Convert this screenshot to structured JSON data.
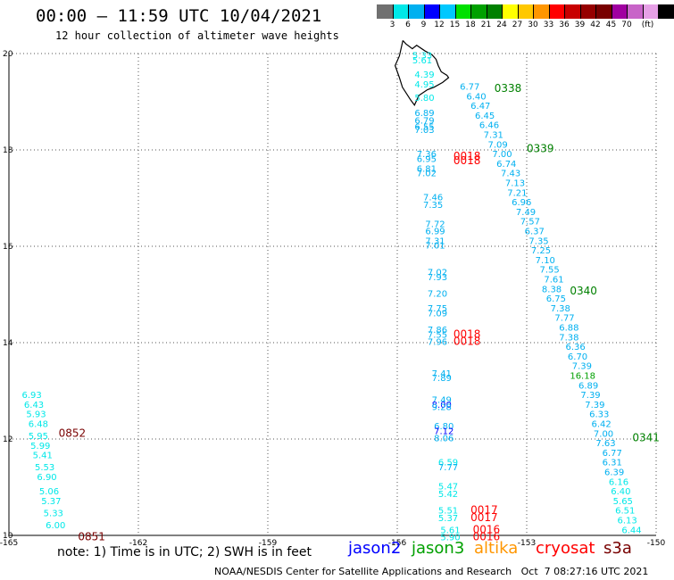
{
  "header": {
    "title": "00:00 – 11:59 UTC 10/04/2021",
    "subtitle": "12 hour collection of altimeter wave heights"
  },
  "legend": {
    "unit": "(ft)",
    "colors": [
      "#707070",
      "#00e8e8",
      "#00b0f0",
      "#0000ff",
      "#00c8ff",
      "#00e000",
      "#00a000",
      "#008000",
      "#ffff00",
      "#ffc800",
      "#ff9600",
      "#ff0000",
      "#c80000",
      "#960000",
      "#780000",
      "#a000a0",
      "#c864c8",
      "#e6a0e6",
      "#000000"
    ],
    "labels": [
      "3",
      "6",
      "9",
      "12",
      "15",
      "18",
      "21",
      "24",
      "27",
      "30",
      "33",
      "36",
      "39",
      "42",
      "45",
      "70"
    ]
  },
  "axes": {
    "x_ticks": [
      "-165",
      "-162",
      "-159",
      "-156",
      "-153",
      "-150"
    ],
    "y_ticks": [
      "20",
      "18",
      "16",
      "14",
      "12",
      "10"
    ]
  },
  "chart_data": {
    "type": "scatter",
    "xlim": [
      -165,
      -150
    ],
    "ylim": [
      10,
      20
    ],
    "grid": true,
    "wave_heights": [
      {
        "lon": -155.65,
        "lat": 19.9,
        "text": "5.33",
        "color": "#00e8e8"
      },
      {
        "lon": -155.65,
        "lat": 19.8,
        "text": "5.61",
        "color": "#00e8e8"
      },
      {
        "lon": -155.6,
        "lat": 19.5,
        "text": "4.39",
        "color": "#00e8e8"
      },
      {
        "lon": -155.6,
        "lat": 19.3,
        "text": "4.95",
        "color": "#00e8e8"
      },
      {
        "lon": -155.6,
        "lat": 19.02,
        "text": "5.80",
        "color": "#00e8e8"
      },
      {
        "lon": -155.6,
        "lat": 18.7,
        "text": "6.89",
        "color": "#00b0f0"
      },
      {
        "lon": -155.6,
        "lat": 18.55,
        "text": "6.79",
        "color": "#00b0f0"
      },
      {
        "lon": -155.6,
        "lat": 18.42,
        "text": "6.55",
        "color": "#00b0f0"
      },
      {
        "lon": -155.6,
        "lat": 18.35,
        "text": "7.03",
        "color": "#00b0f0"
      },
      {
        "lon": -154.55,
        "lat": 19.25,
        "text": "6.77",
        "color": "#00b0f0"
      },
      {
        "lon": -154.4,
        "lat": 19.05,
        "text": "6.40",
        "color": "#00b0f0"
      },
      {
        "lon": -154.3,
        "lat": 18.85,
        "text": "6.47",
        "color": "#00b0f0"
      },
      {
        "lon": -154.2,
        "lat": 18.65,
        "text": "6.45",
        "color": "#00b0f0"
      },
      {
        "lon": -154.1,
        "lat": 18.45,
        "text": "6.46",
        "color": "#00b0f0"
      },
      {
        "lon": -154.0,
        "lat": 18.25,
        "text": "7.31",
        "color": "#00b0f0"
      },
      {
        "lon": -153.9,
        "lat": 18.05,
        "text": "7.09",
        "color": "#00b0f0"
      },
      {
        "lon": -153.8,
        "lat": 17.85,
        "text": "7.00",
        "color": "#00b0f0"
      },
      {
        "lon": -153.7,
        "lat": 17.65,
        "text": "6.74",
        "color": "#00b0f0"
      },
      {
        "lon": -153.6,
        "lat": 17.45,
        "text": "7.43",
        "color": "#00b0f0"
      },
      {
        "lon": -153.5,
        "lat": 17.25,
        "text": "7.13",
        "color": "#00b0f0"
      },
      {
        "lon": -153.45,
        "lat": 17.05,
        "text": "7.21",
        "color": "#00b0f0"
      },
      {
        "lon": -153.35,
        "lat": 16.85,
        "text": "6.96",
        "color": "#00b0f0"
      },
      {
        "lon": -153.25,
        "lat": 16.65,
        "text": "7.49",
        "color": "#00b0f0"
      },
      {
        "lon": -153.15,
        "lat": 16.45,
        "text": "7.57",
        "color": "#00b0f0"
      },
      {
        "lon": -153.05,
        "lat": 16.25,
        "text": "6.37",
        "color": "#00b0f0"
      },
      {
        "lon": -152.95,
        "lat": 16.05,
        "text": "7.35",
        "color": "#00b0f0"
      },
      {
        "lon": -152.9,
        "lat": 15.85,
        "text": "7.25",
        "color": "#00b0f0"
      },
      {
        "lon": -152.8,
        "lat": 15.65,
        "text": "7.10",
        "color": "#00b0f0"
      },
      {
        "lon": -152.7,
        "lat": 15.45,
        "text": "7.55",
        "color": "#00b0f0"
      },
      {
        "lon": -152.6,
        "lat": 15.25,
        "text": "7.61",
        "color": "#00b0f0"
      },
      {
        "lon": -152.65,
        "lat": 15.05,
        "text": "8.38",
        "color": "#00b0f0"
      },
      {
        "lon": -152.55,
        "lat": 14.85,
        "text": "6.75",
        "color": "#00b0f0"
      },
      {
        "lon": -152.45,
        "lat": 14.65,
        "text": "7.38",
        "color": "#00b0f0"
      },
      {
        "lon": -152.35,
        "lat": 14.45,
        "text": "7.77",
        "color": "#00b0f0"
      },
      {
        "lon": -152.25,
        "lat": 14.25,
        "text": "6.88",
        "color": "#00b0f0"
      },
      {
        "lon": -152.25,
        "lat": 14.05,
        "text": "7.38",
        "color": "#00b0f0"
      },
      {
        "lon": -152.1,
        "lat": 13.85,
        "text": "6.36",
        "color": "#00b0f0"
      },
      {
        "lon": -152.05,
        "lat": 13.65,
        "text": "6.70",
        "color": "#00b0f0"
      },
      {
        "lon": -151.95,
        "lat": 13.45,
        "text": "7.39",
        "color": "#00b0f0"
      },
      {
        "lon": -152.0,
        "lat": 13.25,
        "text": "16.18",
        "color": "#00a000"
      },
      {
        "lon": -151.8,
        "lat": 13.05,
        "text": "6.89",
        "color": "#00b0f0"
      },
      {
        "lon": -151.75,
        "lat": 12.85,
        "text": "7.39",
        "color": "#00b0f0"
      },
      {
        "lon": -151.65,
        "lat": 12.65,
        "text": "7.39",
        "color": "#00b0f0"
      },
      {
        "lon": -151.55,
        "lat": 12.45,
        "text": "6.33",
        "color": "#00b0f0"
      },
      {
        "lon": -151.5,
        "lat": 12.25,
        "text": "6.42",
        "color": "#00b0f0"
      },
      {
        "lon": -151.45,
        "lat": 12.05,
        "text": "7.00",
        "color": "#00b0f0"
      },
      {
        "lon": -151.4,
        "lat": 11.85,
        "text": "7.63",
        "color": "#00b0f0"
      },
      {
        "lon": -151.25,
        "lat": 11.65,
        "text": "6.77",
        "color": "#00b0f0"
      },
      {
        "lon": -151.25,
        "lat": 11.45,
        "text": "6.31",
        "color": "#00b0f0"
      },
      {
        "lon": -151.2,
        "lat": 11.25,
        "text": "6.39",
        "color": "#00b0f0"
      },
      {
        "lon": -151.1,
        "lat": 11.05,
        "text": "6.16",
        "color": "#00e8e8"
      },
      {
        "lon": -151.05,
        "lat": 10.85,
        "text": "6.40",
        "color": "#00e8e8"
      },
      {
        "lon": -151.0,
        "lat": 10.65,
        "text": "5.65",
        "color": "#00e8e8"
      },
      {
        "lon": -150.95,
        "lat": 10.45,
        "text": "6.51",
        "color": "#00e8e8"
      },
      {
        "lon": -150.9,
        "lat": 10.25,
        "text": "6.13",
        "color": "#00e8e8"
      },
      {
        "lon": -150.8,
        "lat": 10.05,
        "text": "6.44",
        "color": "#00e8e8"
      },
      {
        "lon": -155.55,
        "lat": 17.85,
        "text": "7.36",
        "color": "#00b0f0"
      },
      {
        "lon": -155.55,
        "lat": 17.75,
        "text": "6.95",
        "color": "#00b0f0"
      },
      {
        "lon": -155.55,
        "lat": 17.55,
        "text": "6.81",
        "color": "#00b0f0"
      },
      {
        "lon": -155.55,
        "lat": 17.45,
        "text": "7.02",
        "color": "#00b0f0"
      },
      {
        "lon": -155.4,
        "lat": 16.95,
        "text": "7.46",
        "color": "#00b0f0"
      },
      {
        "lon": -155.4,
        "lat": 16.8,
        "text": "7.35",
        "color": "#00b0f0"
      },
      {
        "lon": -155.35,
        "lat": 16.4,
        "text": "7.72",
        "color": "#00b0f0"
      },
      {
        "lon": -155.35,
        "lat": 16.25,
        "text": "6.99",
        "color": "#00b0f0"
      },
      {
        "lon": -155.35,
        "lat": 16.05,
        "text": "7.31",
        "color": "#00b0f0"
      },
      {
        "lon": -155.35,
        "lat": 15.95,
        "text": "7.01",
        "color": "#00b0f0"
      },
      {
        "lon": -155.3,
        "lat": 15.4,
        "text": "7.02",
        "color": "#00b0f0"
      },
      {
        "lon": -155.3,
        "lat": 15.3,
        "text": "7.93",
        "color": "#00b0f0"
      },
      {
        "lon": -155.3,
        "lat": 14.95,
        "text": "7.20",
        "color": "#00b0f0"
      },
      {
        "lon": -155.3,
        "lat": 14.65,
        "text": "7.75",
        "color": "#00b0f0"
      },
      {
        "lon": -155.3,
        "lat": 14.55,
        "text": "7.09",
        "color": "#00b0f0"
      },
      {
        "lon": -155.3,
        "lat": 14.2,
        "text": "7.86",
        "color": "#00b0f0"
      },
      {
        "lon": -155.3,
        "lat": 14.1,
        "text": "7.55",
        "color": "#00b0f0"
      },
      {
        "lon": -155.3,
        "lat": 13.95,
        "text": "7.96",
        "color": "#00b0f0"
      },
      {
        "lon": -155.2,
        "lat": 13.3,
        "text": "7.41",
        "color": "#00b0f0"
      },
      {
        "lon": -155.2,
        "lat": 13.2,
        "text": "7.89",
        "color": "#00b0f0"
      },
      {
        "lon": -155.2,
        "lat": 12.75,
        "text": "7.49",
        "color": "#00b0f0"
      },
      {
        "lon": -155.2,
        "lat": 12.65,
        "text": "8.00",
        "color": "#0000ff"
      },
      {
        "lon": -155.2,
        "lat": 12.6,
        "text": "9.28",
        "color": "#00b0f0"
      },
      {
        "lon": -155.15,
        "lat": 12.2,
        "text": "6.80",
        "color": "#00b0f0"
      },
      {
        "lon": -155.15,
        "lat": 12.1,
        "text": "7.12",
        "color": "#0000ff"
      },
      {
        "lon": -155.15,
        "lat": 11.95,
        "text": "8.06",
        "color": "#00b0f0"
      },
      {
        "lon": -155.05,
        "lat": 11.45,
        "text": "6.59",
        "color": "#00e8e8"
      },
      {
        "lon": -155.05,
        "lat": 11.35,
        "text": "7.77",
        "color": "#00b0f0"
      },
      {
        "lon": -155.05,
        "lat": 10.95,
        "text": "5.47",
        "color": "#00e8e8"
      },
      {
        "lon": -155.05,
        "lat": 10.8,
        "text": "5.42",
        "color": "#00e8e8"
      },
      {
        "lon": -155.05,
        "lat": 10.45,
        "text": "5.51",
        "color": "#00e8e8"
      },
      {
        "lon": -155.05,
        "lat": 10.3,
        "text": "5.37",
        "color": "#00e8e8"
      },
      {
        "lon": -155.0,
        "lat": 10.05,
        "text": "5.61",
        "color": "#00e8e8"
      },
      {
        "lon": -155.0,
        "lat": 9.9,
        "text": "5.90",
        "color": "#00e8e8"
      },
      {
        "lon": -164.7,
        "lat": 12.85,
        "text": "6.93",
        "color": "#00e8e8"
      },
      {
        "lon": -164.65,
        "lat": 12.65,
        "text": "6.43",
        "color": "#00e8e8"
      },
      {
        "lon": -164.6,
        "lat": 12.45,
        "text": "5.93",
        "color": "#00e8e8"
      },
      {
        "lon": -164.55,
        "lat": 12.25,
        "text": "6.48",
        "color": "#00e8e8"
      },
      {
        "lon": -164.55,
        "lat": 12.0,
        "text": "5.95",
        "color": "#00e8e8"
      },
      {
        "lon": -164.5,
        "lat": 11.8,
        "text": "5.99",
        "color": "#00e8e8"
      },
      {
        "lon": -164.45,
        "lat": 11.6,
        "text": "5.41",
        "color": "#00e8e8"
      },
      {
        "lon": -164.4,
        "lat": 11.35,
        "text": "5.53",
        "color": "#00e8e8"
      },
      {
        "lon": -164.35,
        "lat": 11.15,
        "text": "6.90",
        "color": "#00e8e8"
      },
      {
        "lon": -164.3,
        "lat": 10.85,
        "text": "5.06",
        "color": "#00e8e8"
      },
      {
        "lon": -164.25,
        "lat": 10.65,
        "text": "5.37",
        "color": "#00e8e8"
      },
      {
        "lon": -164.2,
        "lat": 10.4,
        "text": "5.33",
        "color": "#00e8e8"
      },
      {
        "lon": -164.15,
        "lat": 10.15,
        "text": "6.00",
        "color": "#00e8e8"
      }
    ],
    "pass_times": [
      {
        "lon": -153.75,
        "lat": 19.2,
        "text": "0338",
        "color": "#008000"
      },
      {
        "lon": -153.0,
        "lat": 17.95,
        "text": "0339",
        "color": "#008000"
      },
      {
        "lon": -152.0,
        "lat": 15.0,
        "text": "0340",
        "color": "#008000"
      },
      {
        "lon": -150.55,
        "lat": 11.95,
        "text": "0341",
        "color": "#008000"
      },
      {
        "lon": -154.7,
        "lat": 17.8,
        "text": "0018",
        "color": "#ff0000"
      },
      {
        "lon": -154.7,
        "lat": 17.7,
        "text": "0018",
        "color": "#ff0000"
      },
      {
        "lon": -154.7,
        "lat": 14.1,
        "text": "0018",
        "color": "#ff0000"
      },
      {
        "lon": -154.7,
        "lat": 13.95,
        "text": "0018",
        "color": "#ff0000"
      },
      {
        "lon": -154.3,
        "lat": 10.45,
        "text": "0017",
        "color": "#ff0000"
      },
      {
        "lon": -154.3,
        "lat": 10.3,
        "text": "0017",
        "color": "#ff0000"
      },
      {
        "lon": -154.25,
        "lat": 10.05,
        "text": "0016",
        "color": "#ff0000"
      },
      {
        "lon": -154.25,
        "lat": 9.9,
        "text": "0016",
        "color": "#ff0000"
      },
      {
        "lon": -163.85,
        "lat": 12.05,
        "text": "0852",
        "color": "#780000"
      },
      {
        "lon": -163.4,
        "lat": 9.9,
        "text": "0851",
        "color": "#780000"
      }
    ]
  },
  "footer": {
    "note": "note: 1) Time is in UTC; 2) SWH is in feet",
    "satellites": [
      {
        "name": "jason2",
        "color": "#0000ff"
      },
      {
        "name": "jason3",
        "color": "#00a000"
      },
      {
        "name": "altika",
        "color": "#ff9600"
      },
      {
        "name": "cryosat",
        "color": "#ff0000"
      },
      {
        "name": "s3a",
        "color": "#780000"
      }
    ],
    "credit": "NOAA/NESDIS Center for Satellite Applications and Research   Oct  7 08:27:16 UTC 2021"
  }
}
